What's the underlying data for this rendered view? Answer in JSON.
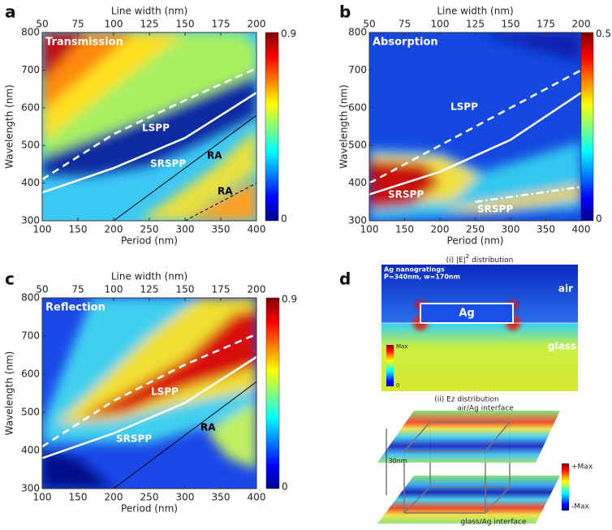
{
  "panels": [
    {
      "label": "a",
      "inset_title": "Transmission",
      "top_axis_title": "Line width (nm)",
      "top_lim": [
        50,
        200
      ],
      "top_ticks": [
        50,
        75,
        100,
        125,
        150,
        175,
        200
      ],
      "x_axis_title": "Period (nm)",
      "xlim": [
        100,
        400
      ],
      "xticks": [
        100,
        150,
        200,
        250,
        300,
        350,
        400
      ],
      "y_axis_title": "Wavelength (nm)",
      "ylim": [
        300,
        800
      ],
      "yticks": [
        300,
        400,
        500,
        600,
        700,
        800
      ],
      "colorbar_lim": [
        0,
        0.9
      ],
      "annotations": [
        "LSPP",
        "SRSPP",
        "RA",
        "RA"
      ]
    },
    {
      "label": "b",
      "inset_title": "Absorption",
      "top_axis_title": "Line width (nm)",
      "top_lim": [
        50,
        200
      ],
      "top_ticks": [
        50,
        75,
        100,
        125,
        150,
        175,
        200
      ],
      "x_axis_title": "Period (nm)",
      "xlim": [
        100,
        400
      ],
      "xticks": [
        100,
        150,
        200,
        250,
        300,
        350,
        400
      ],
      "y_axis_title": "Wavelength (nm)",
      "ylim": [
        300,
        800
      ],
      "yticks": [
        300,
        400,
        500,
        600,
        700,
        800
      ],
      "colorbar_lim": [
        0,
        0.5
      ],
      "annotations": [
        "LSPP",
        "SRSPP",
        "SRSPP"
      ]
    },
    {
      "label": "c",
      "inset_title": "Reflection",
      "top_axis_title": "Line width (nm)",
      "top_lim": [
        50,
        200
      ],
      "top_ticks": [
        50,
        75,
        100,
        125,
        150,
        175,
        200
      ],
      "x_axis_title": "Period (nm)",
      "xlim": [
        100,
        400
      ],
      "xticks": [
        100,
        150,
        200,
        250,
        300,
        350,
        400
      ],
      "y_axis_title": "Wavelength (nm)",
      "ylim": [
        300,
        800
      ],
      "yticks": [
        300,
        400,
        500,
        600,
        700,
        800
      ],
      "colorbar_lim": [
        0,
        0.9
      ],
      "annotations": [
        "LSPP",
        "SRSPP",
        "RA"
      ]
    }
  ],
  "panel_d": {
    "label": "d",
    "caption_i": {
      "prefix": "(i) |E|",
      "sup": "2",
      "suffix": " distribution"
    },
    "structure_title": "Ag nanogratings",
    "structure_params": "P=340nm, w=170nm",
    "upper_medium": "air",
    "lower_medium": "glass",
    "grating": "Ag",
    "colorbar_max": "Max",
    "colorbar_min": 0,
    "caption_ii": "(ii) Ez distribution",
    "upper_interface": "air/Ag interface",
    "gap": "30nm",
    "ez_max": "+Max",
    "ez_min": "-Max",
    "lower_interface": "glass/Ag interface"
  }
}
